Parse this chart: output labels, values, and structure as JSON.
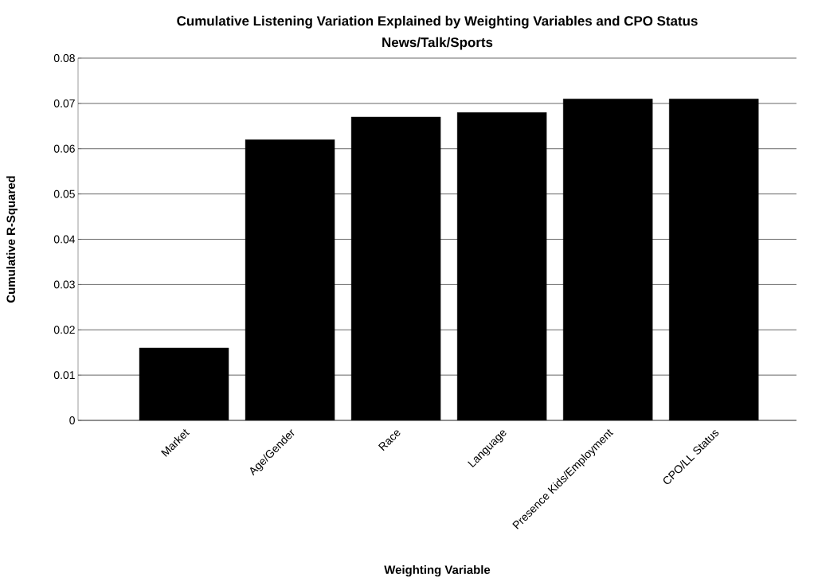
{
  "chart_data": {
    "type": "bar",
    "title": "Cumulative Listening Variation Explained by Weighting Variables and CPO Status",
    "subtitle": "News/Talk/Sports",
    "xlabel": "Weighting Variable",
    "ylabel": "Cumulative R-Squared",
    "categories": [
      "Market",
      "Age/Gender",
      "Race",
      "Language",
      "Presence Kids/Employment",
      "CPO/LL Status"
    ],
    "values": [
      0.016,
      0.062,
      0.067,
      0.068,
      0.071,
      0.071
    ],
    "color": "#000000",
    "ylim": [
      0,
      0.08
    ],
    "yticks": [
      0,
      0.01,
      0.02,
      0.03,
      0.04,
      0.05,
      0.06,
      0.07,
      0.08
    ],
    "grid": "y"
  }
}
